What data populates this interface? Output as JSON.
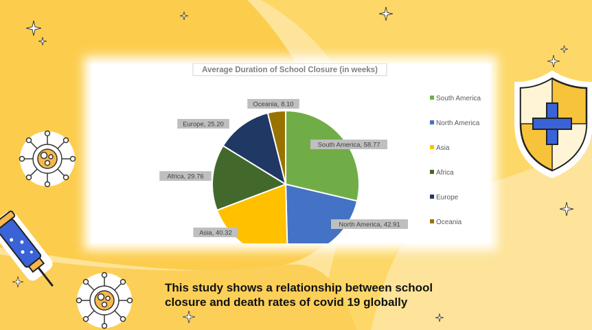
{
  "chart_data": {
    "type": "pie",
    "title": "Average Duration of School Closure  (in weeks)",
    "categories": [
      "South America",
      "North America",
      "Asia",
      "Africa",
      "Europe",
      "Oceania"
    ],
    "values": [
      58.77,
      42.91,
      40.32,
      29.76,
      25.2,
      8.1
    ],
    "data_labels": [
      "South America, 58.77",
      "North America, 42.91",
      "Asia, 40.32",
      "Africa, 29.76",
      "Europe, 25.20",
      "Oceania, 8.10"
    ],
    "colors": [
      "#70ad47",
      "#4472c4",
      "#ffc000",
      "#43682b",
      "#203864",
      "#997300"
    ],
    "legend": "right"
  },
  "caption": {
    "line1": "This study shows a relationship between school",
    "line2": "closure and death rates of covid 19 globally"
  },
  "decorations": [
    "shield-icon",
    "syringe-icon",
    "virus-icon",
    "sparkle-icon"
  ]
}
